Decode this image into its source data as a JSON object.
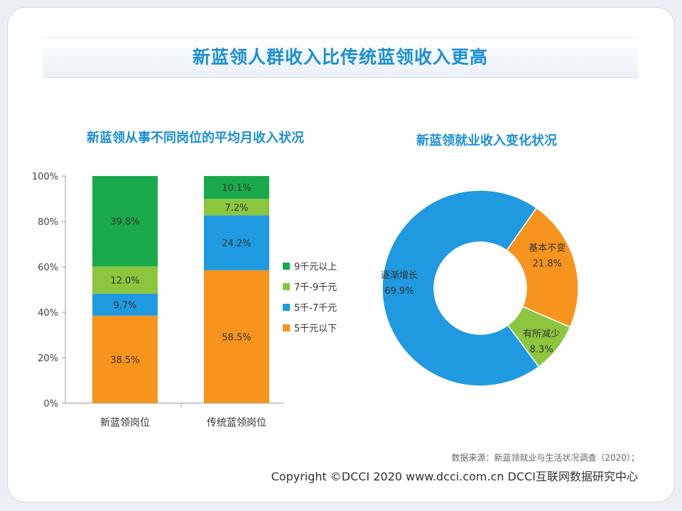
{
  "main_title": "新蓝领人群收入比传统蓝领收入更高",
  "footer": {
    "source": "数据来源：新蓝领就业与生活状况调查（2020）；",
    "copyright": "Copyright ©DCCI 2020   www.dcci.com.cn   DCCI互联网数据研究中心"
  },
  "chart_data": [
    {
      "type": "bar",
      "stacked": true,
      "title": "新蓝领从事不同岗位的平均月收入状况",
      "categories": [
        "新蓝领岗位",
        "传统蓝领岗位"
      ],
      "yticks": [
        "0%",
        "20%",
        "40%",
        "60%",
        "80%",
        "100%"
      ],
      "ylim": [
        0,
        100
      ],
      "legend_position": "right",
      "series": [
        {
          "name": "5千元以下",
          "color": "#f7941d",
          "values": [
            38.5,
            58.5
          ],
          "labels": [
            "38.5%",
            "58.5%"
          ]
        },
        {
          "name": "5千-7千元",
          "color": "#1f9ae0",
          "values": [
            9.7,
            24.2
          ],
          "labels": [
            "9.7%",
            "24.2%"
          ]
        },
        {
          "name": "7千-9千元",
          "color": "#8cc63f",
          "values": [
            12.0,
            7.2
          ],
          "labels": [
            "12.0%",
            "7.2%"
          ]
        },
        {
          "name": "9千元以上",
          "color": "#1aaa4b",
          "values": [
            39.8,
            10.1
          ],
          "labels": [
            "39.8%",
            "10.1%"
          ]
        }
      ]
    },
    {
      "type": "pie",
      "donut": true,
      "title": "新蓝领就业收入变化状况",
      "slices": [
        {
          "label": "基本不变",
          "value": 21.8,
          "pct": "21.8%",
          "color": "#f7941d"
        },
        {
          "label": "有所减少",
          "value": 8.3,
          "pct": "8.3%",
          "color": "#8cc63f"
        },
        {
          "label": "逐渐增长",
          "value": 69.9,
          "pct": "69.9%",
          "color": "#1f9ae0"
        }
      ]
    }
  ]
}
